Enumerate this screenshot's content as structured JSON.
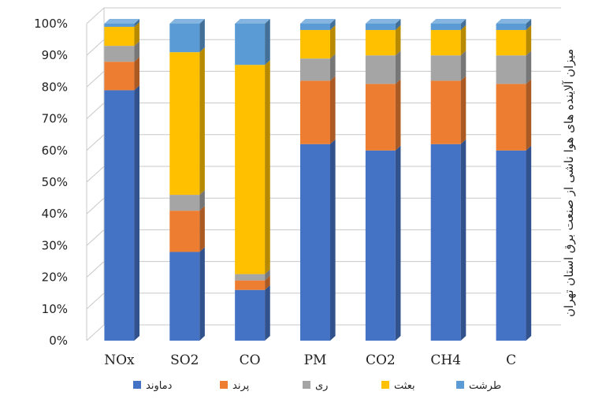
{
  "chart_data": {
    "type": "bar",
    "stacked": true,
    "percent": true,
    "three_d": true,
    "categories": [
      "NOx",
      "SO2",
      "CO",
      "PM",
      "CO2",
      "CH4",
      "C"
    ],
    "ylabel": "میزان آلاینده های هوا ناشی از صنعت برق استان تهران",
    "ylim": [
      0,
      100
    ],
    "yticks": [
      "0%",
      "10%",
      "20%",
      "30%",
      "40%",
      "50%",
      "60%",
      "70%",
      "80%",
      "90%",
      "100%"
    ],
    "grid": true,
    "legend_position": "bottom",
    "series": [
      {
        "name": "دماوند",
        "color": "#4472C4",
        "values": [
          79,
          28,
          16,
          62,
          60,
          62,
          60
        ]
      },
      {
        "name": "پرند",
        "color": "#ED7D31",
        "values": [
          9,
          13,
          3,
          20,
          21,
          20,
          21
        ]
      },
      {
        "name": "ری",
        "color": "#A5A5A5",
        "values": [
          5,
          5,
          2,
          7,
          9,
          8,
          9
        ]
      },
      {
        "name": "بعثت",
        "color": "#FFC000",
        "values": [
          6,
          45,
          66,
          9,
          8,
          8,
          8
        ]
      },
      {
        "name": "طرشت",
        "color": "#5B9BD5",
        "values": [
          1,
          9,
          13,
          2,
          2,
          2,
          2
        ]
      }
    ]
  }
}
